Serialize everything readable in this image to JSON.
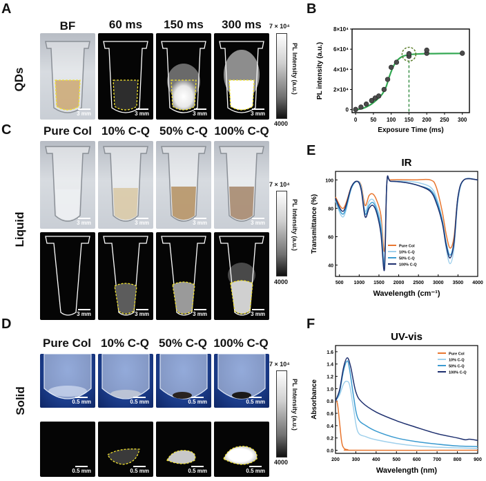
{
  "panel_labels": {
    "a": "A",
    "b": "B",
    "c": "C",
    "d": "D",
    "e": "E",
    "f": "F"
  },
  "row_labels": {
    "a": "QDs",
    "c": "Liquid",
    "d": "Solid"
  },
  "a": {
    "columns": [
      "BF",
      "60 ms",
      "150 ms",
      "300 ms"
    ],
    "scale": "3 mm",
    "colorbar": {
      "max": "7 × 10⁴",
      "min": "4000",
      "label": "PL Intensity (a.u.)"
    }
  },
  "c": {
    "columns": [
      "Pure Col",
      "10% C-Q",
      "50% C-Q",
      "100% C-Q"
    ],
    "scale": "3 mm",
    "colorbar": {
      "max": "7 × 10⁴",
      "min": "4000",
      "label": "PL Intensity (a.u.)"
    }
  },
  "d": {
    "columns": [
      "Pure Col",
      "10% C-Q",
      "50% C-Q",
      "100% C-Q"
    ],
    "scale": "0.5 mm",
    "colorbar": {
      "max": "7 × 10⁴",
      "min": "4000",
      "label": "PL Intensity (a.u.)"
    }
  },
  "chart_data": [
    {
      "id": "B",
      "type": "scatter",
      "title": "",
      "xlabel": "Exposure Time (ms)",
      "ylabel": "PL intensity (a.u.)",
      "xlim": [
        -10,
        320
      ],
      "ylim": [
        -3000,
        80000
      ],
      "xticks": [
        0,
        50,
        100,
        150,
        200,
        250,
        300
      ],
      "yticks": [
        {
          "v": 0,
          "label": "0"
        },
        {
          "v": 20000,
          "label": "2×10⁴"
        },
        {
          "v": 40000,
          "label": "4×10⁴"
        },
        {
          "v": 60000,
          "label": "6×10⁴"
        },
        {
          "v": 80000,
          "label": "8×10⁴"
        }
      ],
      "points": [
        [
          0,
          200
        ],
        [
          15,
          2500
        ],
        [
          30,
          5500
        ],
        [
          45,
          9000
        ],
        [
          55,
          11500
        ],
        [
          65,
          13500
        ],
        [
          80,
          20000
        ],
        [
          90,
          30000
        ],
        [
          100,
          42000
        ],
        [
          115,
          47000
        ],
        [
          150,
          53000
        ],
        [
          150,
          55500
        ],
        [
          200,
          56000
        ],
        [
          200,
          59000
        ],
        [
          300,
          56000
        ]
      ],
      "fit": [
        [
          0,
          0
        ],
        [
          20,
          1200
        ],
        [
          40,
          4500
        ],
        [
          60,
          10000
        ],
        [
          75,
          15500
        ],
        [
          85,
          22000
        ],
        [
          95,
          33000
        ],
        [
          105,
          42000
        ],
        [
          115,
          48000
        ],
        [
          130,
          52500
        ],
        [
          150,
          54500
        ],
        [
          180,
          55300
        ],
        [
          220,
          55600
        ],
        [
          300,
          55800
        ]
      ],
      "highlight_x": 150
    },
    {
      "id": "E",
      "type": "line",
      "title": "IR",
      "xlabel": "Wavelength (cm⁻¹)",
      "ylabel": "Transmittance (%)",
      "xlim": [
        400,
        4000
      ],
      "ylim": [
        32,
        106
      ],
      "xticks": [
        500,
        1000,
        1500,
        2000,
        2500,
        3000,
        3500,
        4000
      ],
      "yticks": [
        40,
        60,
        80,
        100
      ],
      "legend_position": "bottom-center",
      "series": [
        {
          "name": "Pure Col",
          "color": "#e8762f",
          "points": [
            [
              400,
              88
            ],
            [
              600,
              80
            ],
            [
              800,
              95
            ],
            [
              950,
              99
            ],
            [
              1050,
              96
            ],
            [
              1150,
              82
            ],
            [
              1250,
              89
            ],
            [
              1350,
              90
            ],
            [
              1450,
              85
            ],
            [
              1550,
              75
            ],
            [
              1640,
              50
            ],
            [
              1700,
              98
            ],
            [
              1800,
              100
            ],
            [
              2400,
              100
            ],
            [
              2800,
              100
            ],
            [
              2950,
              95
            ],
            [
              3100,
              78
            ],
            [
              3200,
              62
            ],
            [
              3300,
              52
            ],
            [
              3400,
              60
            ],
            [
              3500,
              88
            ],
            [
              3650,
              100
            ],
            [
              4000,
              100
            ]
          ]
        },
        {
          "name": "10% C-Q",
          "color": "#9fd0ec",
          "points": [
            [
              400,
              85
            ],
            [
              600,
              74
            ],
            [
              800,
              94
            ],
            [
              950,
              99
            ],
            [
              1050,
              95
            ],
            [
              1150,
              78
            ],
            [
              1250,
              85
            ],
            [
              1350,
              86
            ],
            [
              1450,
              80
            ],
            [
              1550,
              70
            ],
            [
              1640,
              43
            ],
            [
              1700,
              98
            ],
            [
              1800,
              99
            ],
            [
              2200,
              99
            ],
            [
              2500,
              98
            ],
            [
              2800,
              95
            ],
            [
              2950,
              88
            ],
            [
              3100,
              72
            ],
            [
              3200,
              52
            ],
            [
              3300,
              41
            ],
            [
              3400,
              52
            ],
            [
              3500,
              85
            ],
            [
              3650,
              100
            ],
            [
              4000,
              100
            ]
          ]
        },
        {
          "name": "50% C-Q",
          "color": "#3a9ad0",
          "points": [
            [
              400,
              86
            ],
            [
              600,
              76
            ],
            [
              800,
              94
            ],
            [
              950,
              99
            ],
            [
              1050,
              94
            ],
            [
              1150,
              76
            ],
            [
              1250,
              82
            ],
            [
              1350,
              84
            ],
            [
              1450,
              78
            ],
            [
              1550,
              66
            ],
            [
              1640,
              40
            ],
            [
              1700,
              98
            ],
            [
              1800,
              99
            ],
            [
              2200,
              98
            ],
            [
              2500,
              96
            ],
            [
              2800,
              93
            ],
            [
              2950,
              86
            ],
            [
              3100,
              72
            ],
            [
              3200,
              56
            ],
            [
              3300,
              47
            ],
            [
              3400,
              57
            ],
            [
              3500,
              88
            ],
            [
              3650,
              100
            ],
            [
              4000,
              100
            ]
          ]
        },
        {
          "name": "100% C-Q",
          "color": "#1d2f6e",
          "points": [
            [
              400,
              87
            ],
            [
              600,
              78
            ],
            [
              800,
              95
            ],
            [
              950,
              99
            ],
            [
              1050,
              93
            ],
            [
              1150,
              74
            ],
            [
              1250,
              80
            ],
            [
              1350,
              82
            ],
            [
              1450,
              76
            ],
            [
              1550,
              62
            ],
            [
              1640,
              37
            ],
            [
              1700,
              98
            ],
            [
              1800,
              99
            ],
            [
              2200,
              98
            ],
            [
              2500,
              96
            ],
            [
              2800,
              92
            ],
            [
              2950,
              84
            ],
            [
              3100,
              70
            ],
            [
              3200,
              54
            ],
            [
              3300,
              45
            ],
            [
              3400,
              56
            ],
            [
              3500,
              88
            ],
            [
              3650,
              100
            ],
            [
              4000,
              100
            ]
          ]
        }
      ]
    },
    {
      "id": "F",
      "type": "line",
      "title": "UV-vis",
      "xlabel": "Wavelength (nm)",
      "ylabel": "Absorbance",
      "xlim": [
        200,
        900
      ],
      "ylim": [
        -0.05,
        1.7
      ],
      "xticks": [
        200,
        300,
        400,
        500,
        600,
        700,
        800,
        900
      ],
      "yticks": [
        0,
        0.2,
        0.4,
        0.6,
        0.8,
        1.0,
        1.2,
        1.4,
        1.6
      ],
      "ytick_labels": [
        "0.0",
        "0.2",
        "0.4",
        "0.6",
        "0.8",
        "1.0",
        "1.2",
        "1.4",
        "1.6"
      ],
      "legend_position": "top-right",
      "series": [
        {
          "name": "Pure Col",
          "color": "#e8762f",
          "points": [
            [
              200,
              0.82
            ],
            [
              210,
              0.75
            ],
            [
              220,
              0.45
            ],
            [
              230,
              0.15
            ],
            [
              240,
              0.04
            ],
            [
              260,
              0.01
            ],
            [
              300,
              0.0
            ],
            [
              900,
              0.0
            ]
          ]
        },
        {
          "name": "10% C-Q",
          "color": "#9fd0ec",
          "points": [
            [
              200,
              0.8
            ],
            [
              220,
              0.9
            ],
            [
              240,
              1.08
            ],
            [
              255,
              1.12
            ],
            [
              270,
              1.05
            ],
            [
              290,
              0.65
            ],
            [
              310,
              0.3
            ],
            [
              350,
              0.22
            ],
            [
              400,
              0.17
            ],
            [
              500,
              0.11
            ],
            [
              600,
              0.07
            ],
            [
              700,
              0.05
            ],
            [
              800,
              0.04
            ],
            [
              900,
              0.03
            ]
          ]
        },
        {
          "name": "50% C-Q",
          "color": "#3a9ad0",
          "points": [
            [
              200,
              0.8
            ],
            [
              220,
              0.95
            ],
            [
              240,
              1.3
            ],
            [
              258,
              1.45
            ],
            [
              270,
              1.3
            ],
            [
              290,
              0.85
            ],
            [
              310,
              0.52
            ],
            [
              350,
              0.4
            ],
            [
              400,
              0.31
            ],
            [
              500,
              0.2
            ],
            [
              600,
              0.14
            ],
            [
              700,
              0.1
            ],
            [
              800,
              0.07
            ],
            [
              900,
              0.06
            ]
          ]
        },
        {
          "name": "100% C-Q",
          "color": "#1d2f6e",
          "points": [
            [
              200,
              0.8
            ],
            [
              220,
              0.98
            ],
            [
              240,
              1.35
            ],
            [
              258,
              1.5
            ],
            [
              275,
              1.35
            ],
            [
              300,
              0.95
            ],
            [
              330,
              0.78
            ],
            [
              400,
              0.62
            ],
            [
              500,
              0.48
            ],
            [
              600,
              0.37
            ],
            [
              700,
              0.27
            ],
            [
              800,
              0.2
            ],
            [
              840,
              0.17
            ],
            [
              860,
              0.18
            ],
            [
              900,
              0.16
            ]
          ]
        }
      ]
    }
  ]
}
